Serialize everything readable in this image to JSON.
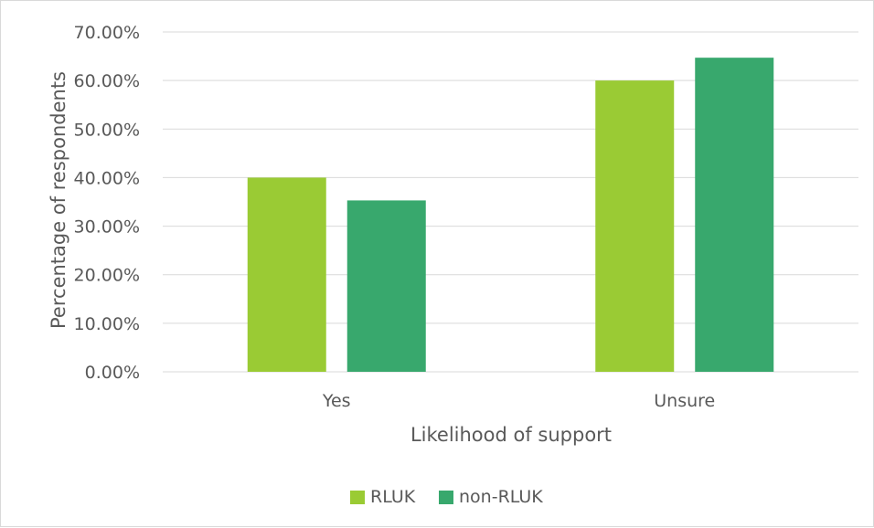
{
  "colors": {
    "rluk": "#9acb34",
    "non_rluk": "#38a86d",
    "grid": "#d9d9d9",
    "text": "#595959"
  },
  "chart_data": {
    "type": "bar",
    "title": "",
    "xlabel": "Likelihood of support",
    "ylabel": "Percentage of respondents",
    "categories": [
      "Yes",
      "Unsure"
    ],
    "series": [
      {
        "name": "RLUK",
        "values": [
          40.0,
          60.0
        ]
      },
      {
        "name": "non-RLUK",
        "values": [
          35.3,
          64.7
        ]
      }
    ],
    "ylim": [
      0,
      70
    ],
    "yticks": [
      0,
      10,
      20,
      30,
      40,
      50,
      60,
      70
    ],
    "ytick_labels": [
      "0.00%",
      "10.00%",
      "20.00%",
      "30.00%",
      "40.00%",
      "50.00%",
      "60.00%",
      "70.00%"
    ],
    "grid": true,
    "legend_position": "bottom"
  }
}
